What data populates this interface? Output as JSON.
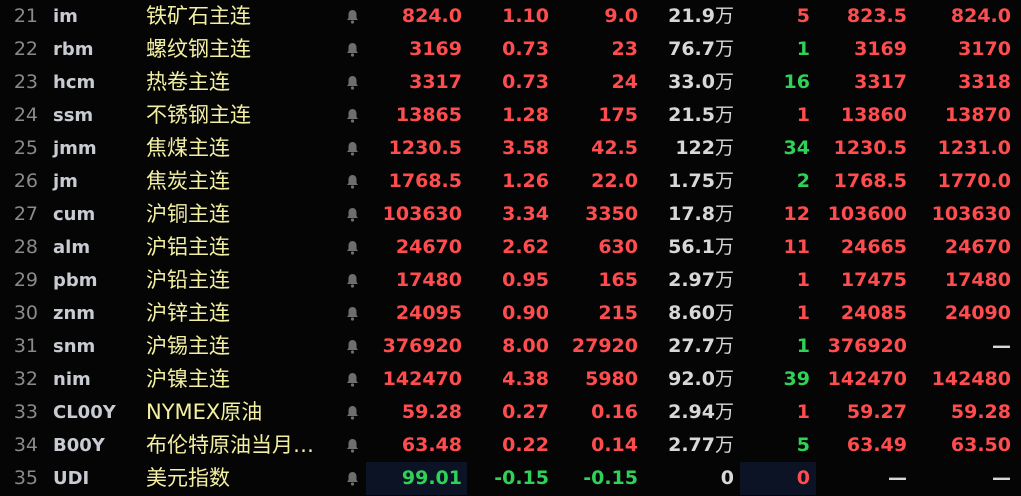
{
  "colors": {
    "up": "#ff4d4f",
    "down": "#2fd158",
    "name": "#f3f0a2",
    "highlight": "#0c1324"
  },
  "rows": [
    {
      "no": "21",
      "code": "im",
      "name": "铁矿石主连",
      "price": "824.0",
      "pct": "1.10",
      "chg": "9.0",
      "vol": "21.9",
      "unit": "万",
      "qty": "5",
      "qty_dir": "up",
      "bid": "823.5",
      "ask": "824.0",
      "dir": "up"
    },
    {
      "no": "22",
      "code": "rbm",
      "name": "螺纹钢主连",
      "price": "3169",
      "pct": "0.73",
      "chg": "23",
      "vol": "76.7",
      "unit": "万",
      "qty": "1",
      "qty_dir": "dn",
      "bid": "3169",
      "ask": "3170",
      "dir": "up"
    },
    {
      "no": "23",
      "code": "hcm",
      "name": "热卷主连",
      "price": "3317",
      "pct": "0.73",
      "chg": "24",
      "vol": "33.0",
      "unit": "万",
      "qty": "16",
      "qty_dir": "dn",
      "bid": "3317",
      "ask": "3318",
      "dir": "up"
    },
    {
      "no": "24",
      "code": "ssm",
      "name": "不锈钢主连",
      "price": "13865",
      "pct": "1.28",
      "chg": "175",
      "vol": "21.5",
      "unit": "万",
      "qty": "1",
      "qty_dir": "up",
      "bid": "13860",
      "ask": "13870",
      "dir": "up"
    },
    {
      "no": "25",
      "code": "jmm",
      "name": "焦煤主连",
      "price": "1230.5",
      "pct": "3.58",
      "chg": "42.5",
      "vol": "122",
      "unit": "万",
      "qty": "34",
      "qty_dir": "dn",
      "bid": "1230.5",
      "ask": "1231.0",
      "dir": "up"
    },
    {
      "no": "26",
      "code": "jm",
      "name": "焦炭主连",
      "price": "1768.5",
      "pct": "1.26",
      "chg": "22.0",
      "vol": "1.75",
      "unit": "万",
      "qty": "2",
      "qty_dir": "dn",
      "bid": "1768.5",
      "ask": "1770.0",
      "dir": "up"
    },
    {
      "no": "27",
      "code": "cum",
      "name": "沪铜主连",
      "price": "103630",
      "pct": "3.34",
      "chg": "3350",
      "vol": "17.8",
      "unit": "万",
      "qty": "12",
      "qty_dir": "up",
      "bid": "103600",
      "ask": "103630",
      "dir": "up"
    },
    {
      "no": "28",
      "code": "alm",
      "name": "沪铝主连",
      "price": "24670",
      "pct": "2.62",
      "chg": "630",
      "vol": "56.1",
      "unit": "万",
      "qty": "11",
      "qty_dir": "up",
      "bid": "24665",
      "ask": "24670",
      "dir": "up"
    },
    {
      "no": "29",
      "code": "pbm",
      "name": "沪铅主连",
      "price": "17480",
      "pct": "0.95",
      "chg": "165",
      "vol": "2.97",
      "unit": "万",
      "qty": "1",
      "qty_dir": "up",
      "bid": "17475",
      "ask": "17480",
      "dir": "up"
    },
    {
      "no": "30",
      "code": "znm",
      "name": "沪锌主连",
      "price": "24095",
      "pct": "0.90",
      "chg": "215",
      "vol": "8.60",
      "unit": "万",
      "qty": "1",
      "qty_dir": "up",
      "bid": "24085",
      "ask": "24090",
      "dir": "up"
    },
    {
      "no": "31",
      "code": "snm",
      "name": "沪锡主连",
      "price": "376920",
      "pct": "8.00",
      "chg": "27920",
      "vol": "27.7",
      "unit": "万",
      "qty": "1",
      "qty_dir": "dn",
      "bid": "376920",
      "ask": "—",
      "ask_dir": "flat",
      "dir": "up"
    },
    {
      "no": "32",
      "code": "nim",
      "name": "沪镍主连",
      "price": "142470",
      "pct": "4.38",
      "chg": "5980",
      "vol": "92.0",
      "unit": "万",
      "qty": "39",
      "qty_dir": "dn",
      "bid": "142470",
      "ask": "142480",
      "dir": "up"
    },
    {
      "no": "33",
      "code": "CL00Y",
      "name": "NYMEX原油",
      "price": "59.28",
      "pct": "0.27",
      "chg": "0.16",
      "vol": "2.94",
      "unit": "万",
      "qty": "1",
      "qty_dir": "up",
      "bid": "59.27",
      "ask": "59.28",
      "dir": "up"
    },
    {
      "no": "34",
      "code": "B00Y",
      "name": "布伦特原油当月…",
      "price": "63.48",
      "pct": "0.22",
      "chg": "0.14",
      "vol": "2.77",
      "unit": "万",
      "qty": "5",
      "qty_dir": "dn",
      "bid": "63.49",
      "ask": "63.50",
      "dir": "up"
    },
    {
      "no": "35",
      "code": "UDI",
      "name": "美元指数",
      "price": "99.01",
      "pct": "-0.15",
      "chg": "-0.15",
      "vol": "0",
      "unit": "",
      "qty": "0",
      "qty_dir": "up",
      "bid": "—",
      "ask": "—",
      "bid_dir": "flat",
      "ask_dir": "flat",
      "dir": "dn",
      "highlight": true
    }
  ]
}
